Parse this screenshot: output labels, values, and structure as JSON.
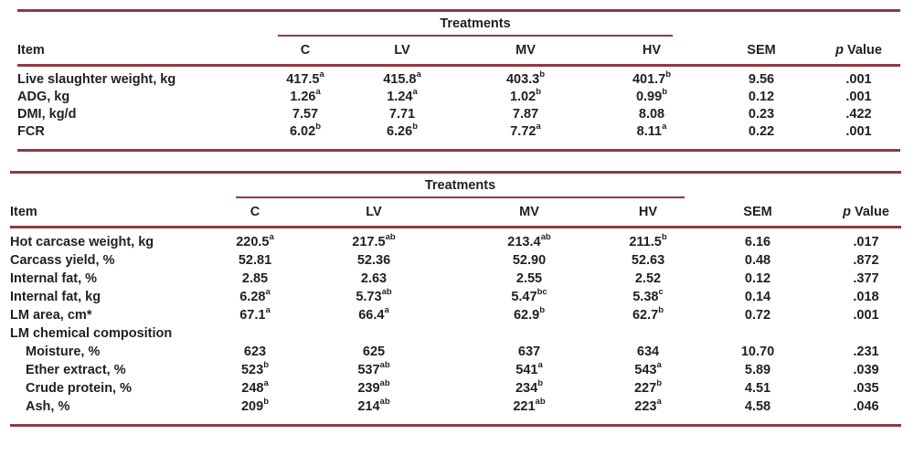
{
  "page": {
    "background": "#ffffff",
    "rule_color": "#8e3a44",
    "text_color": "#1f2023"
  },
  "tables": [
    {
      "name": "growth-performance-table",
      "spanner_label": "Treatments",
      "columns": [
        {
          "key": "item",
          "label": "Item"
        },
        {
          "key": "c",
          "label": "C"
        },
        {
          "key": "lv",
          "label": "LV"
        },
        {
          "key": "mv",
          "label": "MV"
        },
        {
          "key": "hv",
          "label": "HV"
        },
        {
          "key": "sem",
          "label": "SEM"
        },
        {
          "key": "p-value",
          "label": "p Value",
          "italic_prefix": "p",
          "rest": " Value"
        }
      ],
      "rows": [
        {
          "label": "Live slaughter weight, kg",
          "cells": [
            {
              "v": "417.5",
              "s": "a"
            },
            {
              "v": "415.8",
              "s": "a"
            },
            {
              "v": "403.3",
              "s": "b"
            },
            {
              "v": "401.7",
              "s": "b"
            },
            {
              "v": "9.56"
            },
            {
              "v": ".001"
            }
          ]
        },
        {
          "label": "ADG, kg",
          "cells": [
            {
              "v": "1.26",
              "s": "a"
            },
            {
              "v": "1.24",
              "s": "a"
            },
            {
              "v": "1.02",
              "s": "b"
            },
            {
              "v": "0.99",
              "s": "b"
            },
            {
              "v": "0.12"
            },
            {
              "v": ".001"
            }
          ]
        },
        {
          "label": "DMI, kg/d",
          "cells": [
            {
              "v": "7.57"
            },
            {
              "v": "7.71"
            },
            {
              "v": "7.87"
            },
            {
              "v": "8.08"
            },
            {
              "v": "0.23"
            },
            {
              "v": ".422"
            }
          ]
        },
        {
          "label": "FCR",
          "cells": [
            {
              "v": "6.02",
              "s": "b"
            },
            {
              "v": "6.26",
              "s": "b"
            },
            {
              "v": "7.72",
              "s": "a"
            },
            {
              "v": "8.11",
              "s": "a"
            },
            {
              "v": "0.22"
            },
            {
              "v": ".001"
            }
          ]
        }
      ]
    },
    {
      "name": "carcass-traits-table",
      "spanner_label": "Treatments",
      "columns": [
        {
          "key": "item",
          "label": "Item"
        },
        {
          "key": "c",
          "label": "C"
        },
        {
          "key": "lv",
          "label": "LV"
        },
        {
          "key": "mv",
          "label": "MV"
        },
        {
          "key": "hv",
          "label": "HV"
        },
        {
          "key": "sem",
          "label": "SEM"
        },
        {
          "key": "p-value",
          "label": "p Value",
          "italic_prefix": "p",
          "rest": " Value"
        }
      ],
      "rows": [
        {
          "label": "Hot carcase weight, kg",
          "cells": [
            {
              "v": "220.5",
              "s": "a"
            },
            {
              "v": "217.5",
              "s": "ab"
            },
            {
              "v": "213.4",
              "s": "ab"
            },
            {
              "v": "211.5",
              "s": "b"
            },
            {
              "v": "6.16"
            },
            {
              "v": ".017"
            }
          ]
        },
        {
          "label": "Carcass yield, %",
          "cells": [
            {
              "v": "52.81"
            },
            {
              "v": "52.36"
            },
            {
              "v": "52.90"
            },
            {
              "v": "52.63"
            },
            {
              "v": "0.48"
            },
            {
              "v": ".872"
            }
          ]
        },
        {
          "label": "Internal fat, %",
          "cells": [
            {
              "v": "2.85"
            },
            {
              "v": "2.63"
            },
            {
              "v": "2.55"
            },
            {
              "v": "2.52"
            },
            {
              "v": "0.12"
            },
            {
              "v": ".377"
            }
          ]
        },
        {
          "label": "Internal fat, kg",
          "cells": [
            {
              "v": "6.28",
              "s": "a"
            },
            {
              "v": "5.73",
              "s": "ab"
            },
            {
              "v": "5.47",
              "s": "bc"
            },
            {
              "v": "5.38",
              "s": "c"
            },
            {
              "v": "0.14"
            },
            {
              "v": ".018"
            }
          ]
        },
        {
          "label": "LM area, cm*",
          "cells": [
            {
              "v": "67.1",
              "s": "a"
            },
            {
              "v": "66.4",
              "s": "a"
            },
            {
              "v": "62.9",
              "s": "b"
            },
            {
              "v": "62.7",
              "s": "b"
            },
            {
              "v": "0.72"
            },
            {
              "v": ".001"
            }
          ]
        },
        {
          "label": "LM chemical composition",
          "section": true,
          "cells": []
        },
        {
          "label": "Moisture, %",
          "indent": true,
          "cells": [
            {
              "v": "623"
            },
            {
              "v": "625"
            },
            {
              "v": "637"
            },
            {
              "v": "634"
            },
            {
              "v": "10.70"
            },
            {
              "v": ".231"
            }
          ]
        },
        {
          "label": "Ether extract, %",
          "indent": true,
          "cells": [
            {
              "v": "523",
              "s": "b"
            },
            {
              "v": "537",
              "s": "ab"
            },
            {
              "v": "541",
              "s": "a"
            },
            {
              "v": "543",
              "s": "a"
            },
            {
              "v": "5.89"
            },
            {
              "v": ".039"
            }
          ]
        },
        {
          "label": "Crude protein, %",
          "indent": true,
          "cells": [
            {
              "v": "248",
              "s": "a"
            },
            {
              "v": "239",
              "s": "ab"
            },
            {
              "v": "234",
              "s": "b"
            },
            {
              "v": "227",
              "s": "b"
            },
            {
              "v": "4.51"
            },
            {
              "v": ".035"
            }
          ]
        },
        {
          "label": "Ash, %",
          "indent": true,
          "cells": [
            {
              "v": "209",
              "s": "b"
            },
            {
              "v": "214",
              "s": "ab"
            },
            {
              "v": "221",
              "s": "ab"
            },
            {
              "v": "223",
              "s": "a"
            },
            {
              "v": "4.58"
            },
            {
              "v": ".046"
            }
          ]
        }
      ]
    }
  ]
}
